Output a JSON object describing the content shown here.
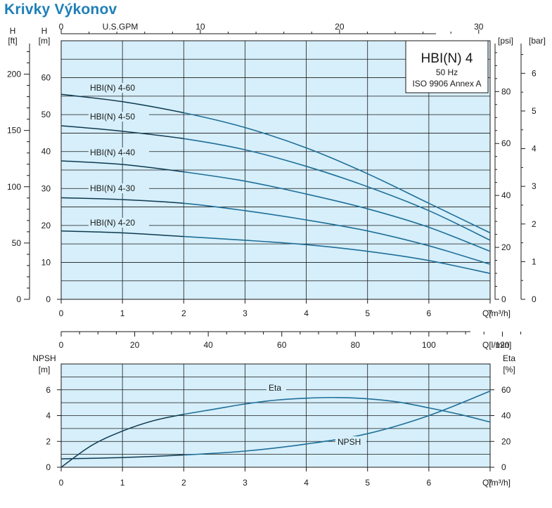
{
  "page": {
    "title": "Krivky Výkonov"
  },
  "legend_box": {
    "model": "HBI(N) 4",
    "freq": "50 Hz",
    "standard": "ISO 9906 Annex A"
  },
  "colors": {
    "plot_bg": "#d6effa",
    "grid": "#1a1a1a",
    "curve": "#1f6f99",
    "curve_thin": "#1a1a1a"
  },
  "chart_data": [
    {
      "type": "line",
      "title": "",
      "x": {
        "label": "Q[m³/h]",
        "min": 0,
        "max": 7,
        "ticks": [
          0,
          1,
          2,
          3,
          4,
          5,
          6,
          7
        ]
      },
      "x_top": {
        "label": "U.S.GPM",
        "ticks": [
          0,
          10,
          20,
          30
        ]
      },
      "x_bottom2": {
        "label": "Q[l/min]",
        "ticks": [
          0,
          20,
          40,
          60,
          80,
          100,
          120
        ]
      },
      "y_left_m": {
        "unit_line1": "H",
        "unit_line2": "[m]",
        "min": 0,
        "max": 70,
        "ticks": [
          0,
          10,
          20,
          30,
          40,
          50,
          60
        ]
      },
      "y_left_ft": {
        "unit_line1": "H",
        "unit_line2": "[ft]",
        "ticks": [
          0,
          50,
          100,
          150,
          200
        ]
      },
      "y_right_psi": {
        "unit": "[psi]",
        "ticks": [
          0,
          20,
          40,
          60,
          80
        ]
      },
      "y_right_bar": {
        "unit": "[bar]",
        "ticks": [
          0,
          1,
          2,
          3,
          4,
          5,
          6
        ]
      },
      "grid": true,
      "series": [
        {
          "name": "HBI(N) 4-60",
          "x": [
            0,
            1,
            2,
            3,
            4,
            5,
            6,
            7
          ],
          "y": [
            55.5,
            53.5,
            50.5,
            46.5,
            41,
            34,
            26,
            18
          ]
        },
        {
          "name": "HBI(N) 4-50",
          "x": [
            0,
            1,
            2,
            3,
            4,
            5,
            6,
            7
          ],
          "y": [
            47,
            45.5,
            43.5,
            40.5,
            36,
            30.5,
            24,
            16
          ]
        },
        {
          "name": "HBI(N) 4-40",
          "x": [
            0,
            1,
            2,
            3,
            4,
            5,
            6,
            7
          ],
          "y": [
            37.5,
            36.5,
            34.5,
            32,
            28.5,
            24.5,
            19.5,
            13
          ]
        },
        {
          "name": "HBI(N) 4-30",
          "x": [
            0,
            1,
            2,
            3,
            4,
            5,
            6,
            7
          ],
          "y": [
            27.5,
            27,
            26,
            24,
            21.5,
            18.5,
            14.5,
            9.5
          ]
        },
        {
          "name": "HBI(N) 4-20",
          "x": [
            0,
            1,
            2,
            3,
            4,
            5,
            6,
            7
          ],
          "y": [
            18.5,
            18,
            17,
            16,
            14.8,
            13,
            10.5,
            7
          ]
        }
      ]
    },
    {
      "type": "line",
      "title": "",
      "x": {
        "label": "Q[m³/h]",
        "min": 0,
        "max": 7,
        "ticks": [
          0,
          1,
          2,
          3,
          4,
          5,
          6,
          7
        ]
      },
      "y_left": {
        "unit_line1": "NPSH",
        "unit_line2": "[m]",
        "min": 0,
        "max": 8,
        "ticks": [
          0,
          2,
          4,
          6
        ]
      },
      "y_right": {
        "unit_line1": "Eta",
        "unit_line2": "[%]",
        "min": 0,
        "max": 80,
        "ticks": [
          0,
          20,
          40,
          60
        ]
      },
      "grid": true,
      "series": [
        {
          "name": "Eta",
          "axis": "right",
          "x": [
            0,
            0.5,
            1,
            1.5,
            2,
            2.5,
            3,
            3.5,
            4,
            4.5,
            5,
            5.5,
            6,
            6.5,
            7
          ],
          "y": [
            0,
            17,
            28,
            36,
            41,
            45,
            49,
            52,
            53.5,
            54,
            53,
            50.5,
            46,
            41,
            35
          ]
        },
        {
          "name": "NPSH",
          "axis": "left",
          "x": [
            0,
            1,
            2,
            3,
            4,
            5,
            6,
            7
          ],
          "y": [
            0.65,
            0.75,
            0.95,
            1.25,
            1.8,
            2.6,
            4,
            5.9
          ]
        }
      ]
    }
  ]
}
